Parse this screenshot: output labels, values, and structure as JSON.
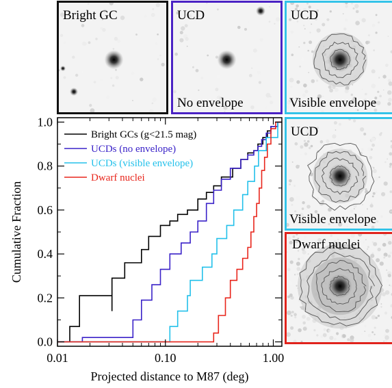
{
  "panels": [
    {
      "id": "p1",
      "top_label": "Bright GC",
      "bottom_label": "",
      "border_color": "#111111",
      "envelope": "none",
      "contours": 0
    },
    {
      "id": "p2",
      "top_label": "UCD",
      "bottom_label": "No envelope",
      "border_color": "#4a22c4",
      "envelope": "none",
      "contours": 0
    },
    {
      "id": "p3",
      "top_label": "UCD",
      "bottom_label": "Visible envelope",
      "border_color": "#33c3e8",
      "envelope": "visible",
      "contours": 3
    },
    {
      "id": "p4",
      "top_label": "UCD",
      "bottom_label": "Visible envelope",
      "border_color": "#33c3e8",
      "envelope": "visible",
      "contours": 4
    },
    {
      "id": "p5",
      "top_label": "Dwarf nuclei",
      "bottom_label": "",
      "border_color": "#e0231c",
      "envelope": "extended",
      "contours": 5
    }
  ],
  "chart_data": {
    "type": "line",
    "title": "",
    "xlabel": "Projected distance to M87 (deg)",
    "ylabel": "Cumulative Fraction",
    "xscale": "log",
    "xlim": [
      0.01,
      1.2
    ],
    "ylim": [
      -0.02,
      1.02
    ],
    "xticks": [
      {
        "value": 0.01,
        "label": "0.01"
      },
      {
        "value": 0.1,
        "label": "0.10"
      },
      {
        "value": 1.0,
        "label": "1.00"
      }
    ],
    "yticks": [
      {
        "value": 0.0,
        "label": "0.0"
      },
      {
        "value": 0.2,
        "label": "0.2"
      },
      {
        "value": 0.4,
        "label": "0.4"
      },
      {
        "value": 0.6,
        "label": "0.6"
      },
      {
        "value": 0.8,
        "label": "0.8"
      },
      {
        "value": 1.0,
        "label": "1.0"
      }
    ],
    "legend_position": "top-left",
    "series": [
      {
        "name": "Bright GCs (g<21.5 mag)",
        "color": "#000000",
        "points": [
          [
            0.013,
            0.07
          ],
          [
            0.032,
            0.14
          ],
          [
            0.016,
            0.21
          ],
          [
            0.032,
            0.29
          ],
          [
            0.042,
            0.36
          ],
          [
            0.06,
            0.42
          ],
          [
            0.07,
            0.48
          ],
          [
            0.09,
            0.53
          ],
          [
            0.11,
            0.55
          ],
          [
            0.13,
            0.58
          ],
          [
            0.16,
            0.6
          ],
          [
            0.2,
            0.65
          ],
          [
            0.24,
            0.68
          ],
          [
            0.28,
            0.71
          ],
          [
            0.33,
            0.75
          ],
          [
            0.42,
            0.79
          ],
          [
            0.5,
            0.83
          ],
          [
            0.58,
            0.86
          ],
          [
            0.66,
            0.87
          ],
          [
            0.72,
            0.9
          ],
          [
            0.8,
            0.93
          ],
          [
            0.88,
            0.96
          ],
          [
            0.95,
            0.98
          ],
          [
            1.1,
            1.0
          ]
        ]
      },
      {
        "name": "UCDs (no envelope)",
        "color": "#3a22c8",
        "points": [
          [
            0.017,
            0.02
          ],
          [
            0.05,
            0.1
          ],
          [
            0.06,
            0.19
          ],
          [
            0.075,
            0.26
          ],
          [
            0.09,
            0.33
          ],
          [
            0.11,
            0.4
          ],
          [
            0.14,
            0.45
          ],
          [
            0.17,
            0.5
          ],
          [
            0.2,
            0.55
          ],
          [
            0.24,
            0.63
          ],
          [
            0.28,
            0.69
          ],
          [
            0.33,
            0.74
          ],
          [
            0.4,
            0.79
          ],
          [
            0.5,
            0.83
          ],
          [
            0.58,
            0.85
          ],
          [
            0.66,
            0.87
          ],
          [
            0.72,
            0.89
          ],
          [
            0.78,
            0.92
          ],
          [
            0.86,
            0.95
          ],
          [
            0.95,
            0.98
          ],
          [
            1.1,
            1.0
          ]
        ]
      },
      {
        "name": "UCDs (visible envelope)",
        "color": "#22c0ea",
        "points": [
          [
            0.1,
            0.0
          ],
          [
            0.11,
            0.07
          ],
          [
            0.13,
            0.14
          ],
          [
            0.16,
            0.21
          ],
          [
            0.17,
            0.28
          ],
          [
            0.22,
            0.34
          ],
          [
            0.27,
            0.4
          ],
          [
            0.3,
            0.47
          ],
          [
            0.37,
            0.53
          ],
          [
            0.43,
            0.6
          ],
          [
            0.52,
            0.67
          ],
          [
            0.58,
            0.73
          ],
          [
            0.67,
            0.8
          ],
          [
            0.73,
            0.87
          ],
          [
            0.86,
            0.93
          ],
          [
            1.1,
            1.0
          ]
        ]
      },
      {
        "name": "Dwarf nuclei",
        "color": "#e8251b",
        "points": [
          [
            0.25,
            0.0
          ],
          [
            0.28,
            0.04
          ],
          [
            0.31,
            0.12
          ],
          [
            0.36,
            0.2
          ],
          [
            0.4,
            0.28
          ],
          [
            0.46,
            0.33
          ],
          [
            0.52,
            0.38
          ],
          [
            0.58,
            0.43
          ],
          [
            0.62,
            0.5
          ],
          [
            0.66,
            0.57
          ],
          [
            0.7,
            0.63
          ],
          [
            0.74,
            0.7
          ],
          [
            0.78,
            0.78
          ],
          [
            0.83,
            0.84
          ],
          [
            0.88,
            0.9
          ],
          [
            0.95,
            0.97
          ],
          [
            1.05,
            1.0
          ]
        ]
      }
    ]
  }
}
